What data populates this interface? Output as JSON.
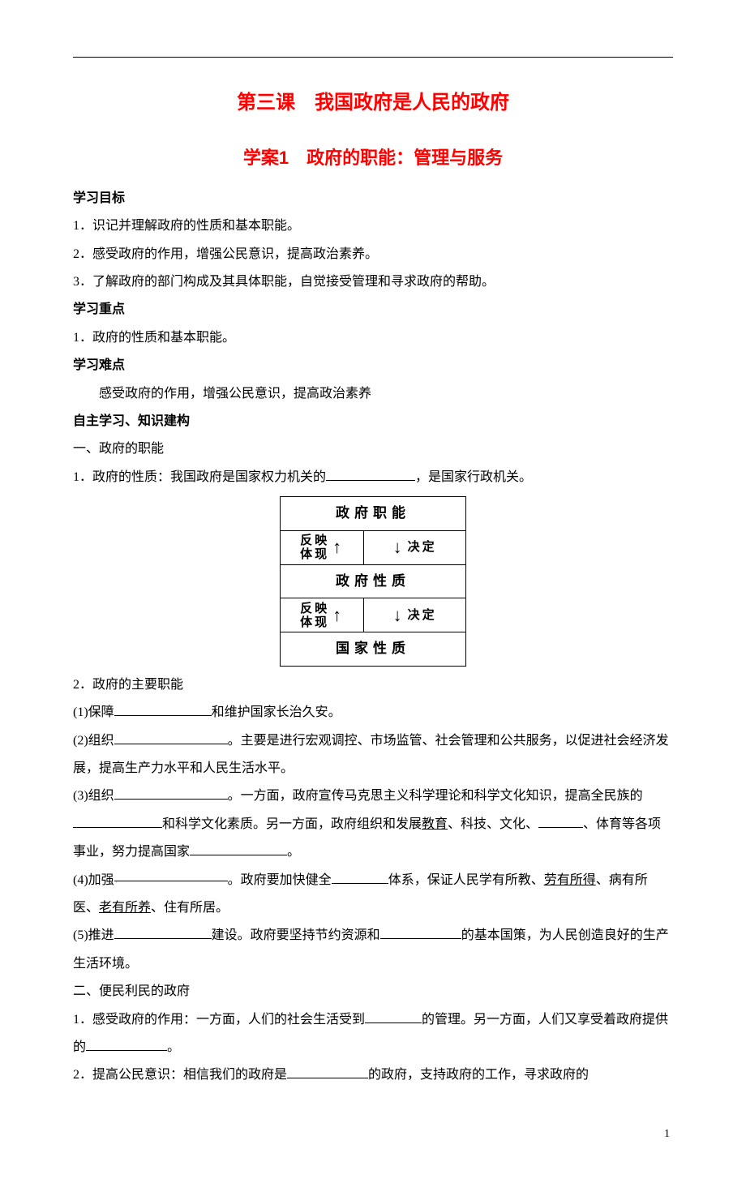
{
  "title_main": "第三课　我国政府是人民的政府",
  "title_sub": "学案1　政府的职能：管理与服务",
  "goals_head": "学习目标",
  "goals": [
    "1．识记并理解政府的性质和基本职能。",
    "2．感受政府的作用，增强公民意识，提高政治素养。",
    "3．了解政府的部门构成及其具体职能，自觉接受管理和寻求政府的帮助。"
  ],
  "focus_head": "学习重点",
  "focus": "1．政府的性质和基本职能。",
  "diff_head": "学习难点",
  "diff": "感受政府的作用，增强公民意识，提高政治素养",
  "self_head": "自主学习、知识建构",
  "s1_head": "一、政府的职能",
  "s1_1a": "1．政府的性质：我国政府是国家权力机关的",
  "s1_1b": "，是国家行政机关。",
  "diagram": {
    "b1": "政府职能",
    "l1a": "反映",
    "l1b": "体现",
    "r1": "决定",
    "b2": "政府性质",
    "l2a": "反映",
    "l2b": "体现",
    "r2": "决定",
    "b3": "国家性质"
  },
  "s1_2": "2．政府的主要职能",
  "s1_2_1a": "(1)保障",
  "s1_2_1b": "和维护国家长治久安。",
  "s1_2_2a": "(2)组织",
  "s1_2_2b": "。主要是进行宏观调控、市场监管、社会管理和公共服务，以促进社会经济发展，提高生产力水平和人民生活水平。",
  "s1_2_3a": "(3)组织",
  "s1_2_3b": "。一方面，政府宣传马克思主义科学理论和科学文化知识，提高全民族的",
  "s1_2_3c": "和科学文化素质。另一方面，政府组织和发展",
  "s1_2_3_edu": "教育",
  "s1_2_3d": "、科技、文化、",
  "s1_2_3e": "、体育等各项事业，努力提高国家",
  "s1_2_3f": "。",
  "s1_2_4a": "(4)加强",
  "s1_2_4b": "。政府要加快健全",
  "s1_2_4c": "体系，保证人民学有所教、",
  "s1_2_4_lao": "劳有所得",
  "s1_2_4d": "、病有所医、",
  "s1_2_4_old": "老有所养",
  "s1_2_4e": "、住有所居。",
  "s1_2_5a": "(5)推进",
  "s1_2_5b": "建设。政府要坚持节约资源和",
  "s1_2_5c": "的基本国策，为人民创造良好的生产生活环境。",
  "s2_head": "二、便民利民的政府",
  "s2_1a": "1．感受政府的作用：一方面，人们的社会生活受到",
  "s2_1b": "的管理。另一方面，人们又享受着政府提供的",
  "s2_1c": "。",
  "s2_2a": "2．提高公民意识：相信我们的政府是",
  "s2_2b": "的政府，支持政府的工作，寻求政府的",
  "page_num": "1"
}
